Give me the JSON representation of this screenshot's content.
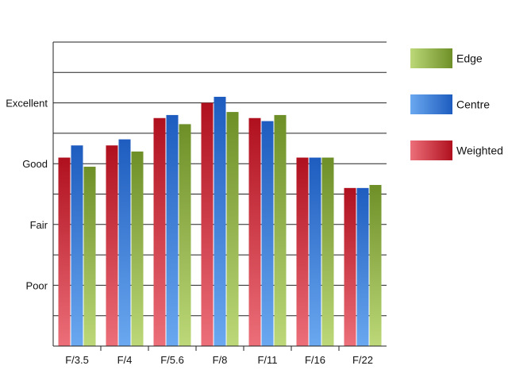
{
  "chart_data": {
    "type": "bar",
    "title": "",
    "xlabel": "",
    "ylabel": "",
    "categories": [
      "F/3.5",
      "F/4",
      "F/5.6",
      "F/8",
      "F/11",
      "F/16",
      "F/22"
    ],
    "ylim": [
      0,
      10
    ],
    "yticks": [
      {
        "value": 2,
        "label": "Poor"
      },
      {
        "value": 4,
        "label": "Fair"
      },
      {
        "value": 6,
        "label": "Good"
      },
      {
        "value": 8,
        "label": "Excellent"
      }
    ],
    "gridlines_every": 1,
    "grid": true,
    "legend_position": "right",
    "series": [
      {
        "name": "Weighted",
        "values": [
          6.2,
          6.6,
          7.5,
          8.0,
          7.5,
          6.2,
          5.2
        ]
      },
      {
        "name": "Centre",
        "values": [
          6.6,
          6.8,
          7.6,
          8.2,
          7.4,
          6.2,
          5.2
        ]
      },
      {
        "name": "Edge",
        "values": [
          5.9,
          6.4,
          7.3,
          7.7,
          7.6,
          6.2,
          5.3
        ]
      }
    ],
    "legend": [
      {
        "name": "Edge",
        "series_index": 2
      },
      {
        "name": "Centre",
        "series_index": 1
      },
      {
        "name": "Weighted",
        "series_index": 0
      }
    ],
    "colors": {
      "Weighted": {
        "light": "#ec6f79",
        "dark": "#b0101e"
      },
      "Centre": {
        "light": "#6aa8f0",
        "dark": "#1e5cbf"
      },
      "Edge": {
        "light": "#bcd878",
        "dark": "#6e8f28"
      }
    }
  }
}
